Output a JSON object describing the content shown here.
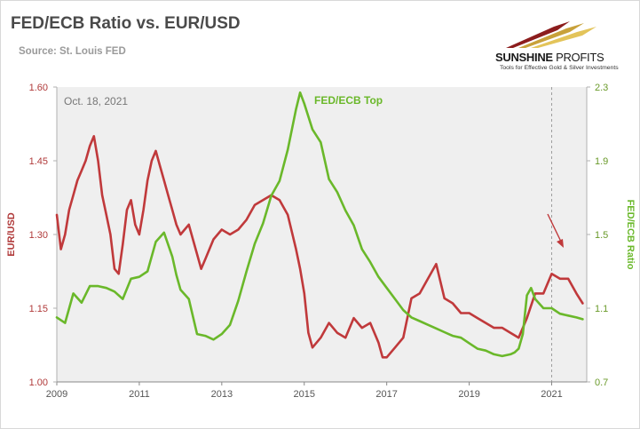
{
  "header": {
    "title": "FED/ECB Ratio vs. EUR/USD",
    "source": "Source: St. Louis FED"
  },
  "logo": {
    "name_bold": "SUNSHINE",
    "name_regular": " PROFITS",
    "tagline": "Tools for Effective Gold & Silver Investments"
  },
  "colors": {
    "eurusd": "#c0393b",
    "fedecb": "#6ab82a",
    "plot_bg": "#efefef",
    "grid": "#bdbdbd"
  },
  "chart_data": {
    "type": "line",
    "xlabel": "",
    "x_tick_labels": [
      "2009",
      "2011",
      "2013",
      "2015",
      "2017",
      "2019",
      "2021"
    ],
    "xlim": [
      2009.0,
      2021.85
    ],
    "annotations": [
      "Oct. 18, 2021",
      "FED/ECB Top"
    ],
    "grid": "vertical dashed at 2021",
    "left_axis": {
      "label": "EUR/USD",
      "ylim": [
        1.0,
        1.6
      ],
      "ticks": [
        "1.00",
        "1.15",
        "1.30",
        "1.45",
        "1.60"
      ]
    },
    "right_axis": {
      "label": "FED/ECB Ratio",
      "ylim": [
        0.7,
        2.3
      ],
      "ticks": [
        "0.7",
        "1.1",
        "1.5",
        "1.9",
        "2.3"
      ]
    },
    "series": [
      {
        "name": "EUR/USD",
        "axis": "left",
        "x": [
          2009.0,
          2009.1,
          2009.2,
          2009.3,
          2009.4,
          2009.5,
          2009.6,
          2009.7,
          2009.8,
          2009.9,
          2010.0,
          2010.1,
          2010.2,
          2010.3,
          2010.4,
          2010.5,
          2010.6,
          2010.7,
          2010.8,
          2010.9,
          2011.0,
          2011.1,
          2011.2,
          2011.3,
          2011.4,
          2011.5,
          2011.6,
          2011.7,
          2011.8,
          2011.9,
          2012.0,
          2012.2,
          2012.4,
          2012.5,
          2012.6,
          2012.8,
          2013.0,
          2013.2,
          2013.4,
          2013.6,
          2013.8,
          2014.0,
          2014.2,
          2014.4,
          2014.6,
          2014.8,
          2014.9,
          2015.0,
          2015.1,
          2015.2,
          2015.4,
          2015.6,
          2015.8,
          2016.0,
          2016.2,
          2016.4,
          2016.6,
          2016.8,
          2016.9,
          2017.0,
          2017.2,
          2017.4,
          2017.6,
          2017.8,
          2018.0,
          2018.2,
          2018.4,
          2018.6,
          2018.8,
          2019.0,
          2019.2,
          2019.4,
          2019.6,
          2019.8,
          2020.0,
          2020.2,
          2020.4,
          2020.6,
          2020.8,
          2021.0,
          2021.2,
          2021.4,
          2021.6,
          2021.75
        ],
        "values": [
          1.34,
          1.27,
          1.3,
          1.35,
          1.38,
          1.41,
          1.43,
          1.45,
          1.48,
          1.5,
          1.45,
          1.38,
          1.34,
          1.3,
          1.23,
          1.22,
          1.28,
          1.35,
          1.37,
          1.32,
          1.3,
          1.35,
          1.41,
          1.45,
          1.47,
          1.44,
          1.41,
          1.38,
          1.35,
          1.32,
          1.3,
          1.32,
          1.26,
          1.23,
          1.25,
          1.29,
          1.31,
          1.3,
          1.31,
          1.33,
          1.36,
          1.37,
          1.38,
          1.37,
          1.34,
          1.27,
          1.23,
          1.18,
          1.1,
          1.07,
          1.09,
          1.12,
          1.1,
          1.09,
          1.13,
          1.11,
          1.12,
          1.08,
          1.05,
          1.05,
          1.07,
          1.09,
          1.17,
          1.18,
          1.21,
          1.24,
          1.17,
          1.16,
          1.14,
          1.14,
          1.13,
          1.12,
          1.11,
          1.11,
          1.1,
          1.09,
          1.13,
          1.18,
          1.18,
          1.22,
          1.21,
          1.21,
          1.18,
          1.16
        ]
      },
      {
        "name": "FED/ECB Ratio",
        "axis": "right",
        "x": [
          2009.0,
          2009.2,
          2009.4,
          2009.6,
          2009.8,
          2010.0,
          2010.2,
          2010.4,
          2010.6,
          2010.8,
          2011.0,
          2011.2,
          2011.4,
          2011.6,
          2011.8,
          2011.9,
          2012.0,
          2012.2,
          2012.4,
          2012.6,
          2012.8,
          2013.0,
          2013.2,
          2013.4,
          2013.6,
          2013.8,
          2014.0,
          2014.2,
          2014.4,
          2014.6,
          2014.8,
          2014.9,
          2015.0,
          2015.2,
          2015.4,
          2015.6,
          2015.8,
          2016.0,
          2016.2,
          2016.4,
          2016.6,
          2016.8,
          2017.0,
          2017.2,
          2017.4,
          2017.6,
          2017.8,
          2018.0,
          2018.2,
          2018.4,
          2018.6,
          2018.8,
          2019.0,
          2019.2,
          2019.4,
          2019.6,
          2019.8,
          2020.0,
          2020.1,
          2020.2,
          2020.3,
          2020.4,
          2020.5,
          2020.6,
          2020.8,
          2021.0,
          2021.2,
          2021.4,
          2021.6,
          2021.75
        ],
        "values": [
          1.05,
          1.02,
          1.18,
          1.13,
          1.22,
          1.22,
          1.21,
          1.19,
          1.15,
          1.26,
          1.27,
          1.3,
          1.46,
          1.51,
          1.38,
          1.28,
          1.2,
          1.15,
          0.96,
          0.95,
          0.93,
          0.96,
          1.01,
          1.14,
          1.3,
          1.45,
          1.56,
          1.71,
          1.79,
          1.96,
          2.18,
          2.27,
          2.21,
          2.07,
          2.0,
          1.8,
          1.73,
          1.63,
          1.55,
          1.42,
          1.35,
          1.27,
          1.21,
          1.15,
          1.09,
          1.05,
          1.03,
          1.01,
          0.99,
          0.97,
          0.95,
          0.94,
          0.91,
          0.88,
          0.87,
          0.85,
          0.84,
          0.85,
          0.86,
          0.88,
          0.96,
          1.17,
          1.21,
          1.15,
          1.1,
          1.1,
          1.07,
          1.06,
          1.05,
          1.04
        ]
      }
    ]
  }
}
